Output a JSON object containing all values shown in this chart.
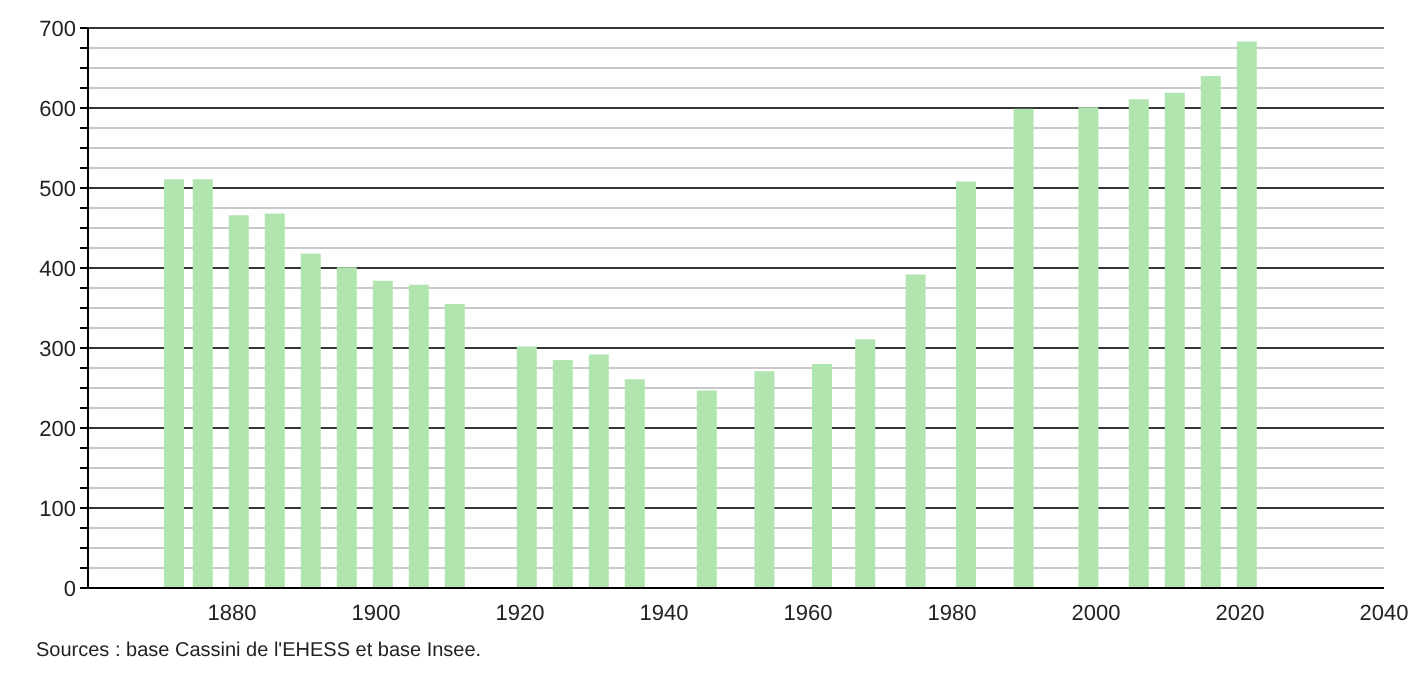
{
  "chart_data": {
    "type": "bar",
    "x": [
      1872,
      1876,
      1881,
      1886,
      1891,
      1896,
      1901,
      1906,
      1911,
      1921,
      1926,
      1931,
      1936,
      1946,
      1954,
      1962,
      1968,
      1975,
      1982,
      1990,
      1999,
      2006,
      2011,
      2016,
      2021
    ],
    "values": [
      511,
      511,
      466,
      468,
      418,
      401,
      384,
      379,
      355,
      302,
      285,
      292,
      261,
      247,
      271,
      280,
      311,
      392,
      508,
      599,
      601,
      611,
      619,
      640,
      683
    ],
    "color": "#b0e5b0",
    "xlim": [
      1860,
      2040
    ],
    "xticks": [
      1880,
      1900,
      1920,
      1940,
      1960,
      1980,
      2000,
      2020,
      2040
    ],
    "ylim": [
      0,
      700
    ],
    "yticks": [
      0,
      {
        "value": 25,
        "label": null
      },
      {
        "value": 50,
        "label": null
      },
      {
        "value": 75,
        "label": null
      },
      100,
      {
        "value": 125,
        "label": null
      },
      {
        "value": 150,
        "label": null
      },
      {
        "value": 175,
        "label": null
      },
      200,
      {
        "value": 225,
        "label": null
      },
      {
        "value": 250,
        "label": null
      },
      {
        "value": 275,
        "label": null
      },
      300,
      {
        "value": 325,
        "label": null
      },
      {
        "value": 350,
        "label": null
      },
      {
        "value": 375,
        "label": null
      },
      400,
      {
        "value": 425,
        "label": null
      },
      {
        "value": 450,
        "label": null
      },
      {
        "value": 475,
        "label": null
      },
      500,
      {
        "value": 525,
        "label": null
      },
      {
        "value": 550,
        "label": null
      },
      {
        "value": 575,
        "label": null
      },
      600,
      {
        "value": 625,
        "label": null
      },
      {
        "value": 650,
        "label": null
      },
      {
        "value": 675,
        "label": null
      },
      700
    ],
    "grid": "y",
    "annotations": [
      "Sources : base Cassini de l'EHESS et base Insee."
    ]
  }
}
